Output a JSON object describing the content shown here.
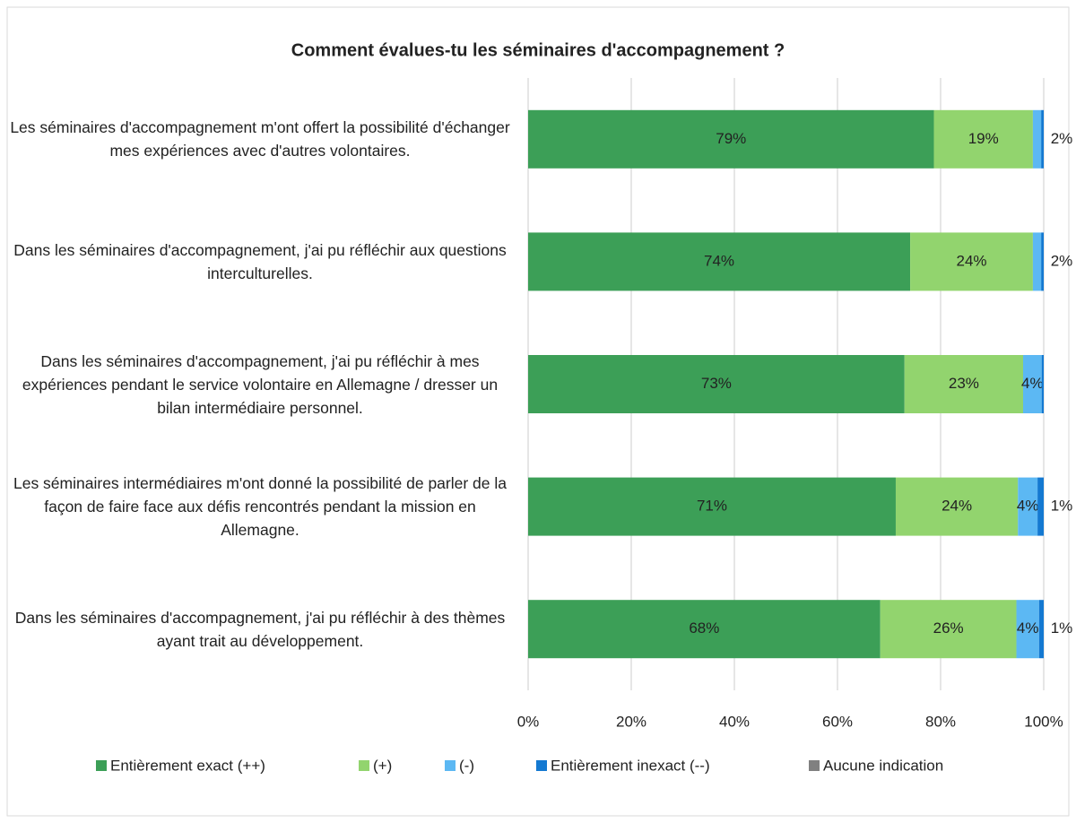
{
  "chart_data": {
    "type": "stacked-barh",
    "title": "Comment évalues-tu les séminaires d'accompagnement ?",
    "categories": [
      "Les séminaires d'accompagnement m'ont offert la possibilité d'échanger mes expériences avec d'autres volontaires.",
      "Dans les séminaires d'accompagnement, j'ai pu réfléchir aux questions interculturelles.",
      "Dans les séminaires d'accompagnement, j'ai pu réfléchir à mes expériences pendant le service volontaire en Allemagne / dresser un bilan intermédiaire personnel.",
      "Les séminaires intermédiaires m'ont donné la possibilité de parler de la façon de faire face aux défis rencontrés pendant la mission en Allemagne.",
      "Dans les séminaires d'accompagnement, j'ai pu réfléchir à des thèmes ayant trait au développement."
    ],
    "series": [
      {
        "name": "Entièrement exact (++)",
        "color": "#3c9f57",
        "values": [
          78.7,
          74.1,
          73.0,
          71.3,
          68.3
        ],
        "value_labels": [
          "79%",
          "74%",
          "73%",
          "71%",
          "68%"
        ]
      },
      {
        "name": "(+)",
        "color": "#92d46e",
        "values": [
          19.2,
          23.8,
          23.0,
          23.7,
          26.4
        ],
        "value_labels": [
          "19%",
          "24%",
          "23%",
          "24%",
          "26%"
        ]
      },
      {
        "name": "(-)",
        "color": "#5cb8f3",
        "values": [
          1.6,
          1.6,
          3.6,
          3.8,
          4.4
        ],
        "value_labels": [
          "2%",
          "2%",
          "4%",
          "4%",
          "4%"
        ]
      },
      {
        "name": "Entièrement inexact (--)",
        "color": "#1479d1",
        "values": [
          0.5,
          0.5,
          0.4,
          1.2,
          0.9
        ],
        "value_labels": [
          null,
          null,
          null,
          "1%",
          "1%"
        ]
      },
      {
        "name": "Aucune indication",
        "color": "#808080",
        "values": [
          0,
          0,
          0,
          0,
          0
        ]
      }
    ],
    "xlim": [
      0,
      100
    ],
    "xticks": [
      {
        "value": 0,
        "label": "0%"
      },
      {
        "value": 20,
        "label": "20%"
      },
      {
        "value": 40,
        "label": "40%"
      },
      {
        "value": 60,
        "label": "60%"
      },
      {
        "value": 80,
        "label": "80%"
      },
      {
        "value": 100,
        "label": "100%"
      }
    ],
    "grid": true,
    "legend": "bottom"
  }
}
